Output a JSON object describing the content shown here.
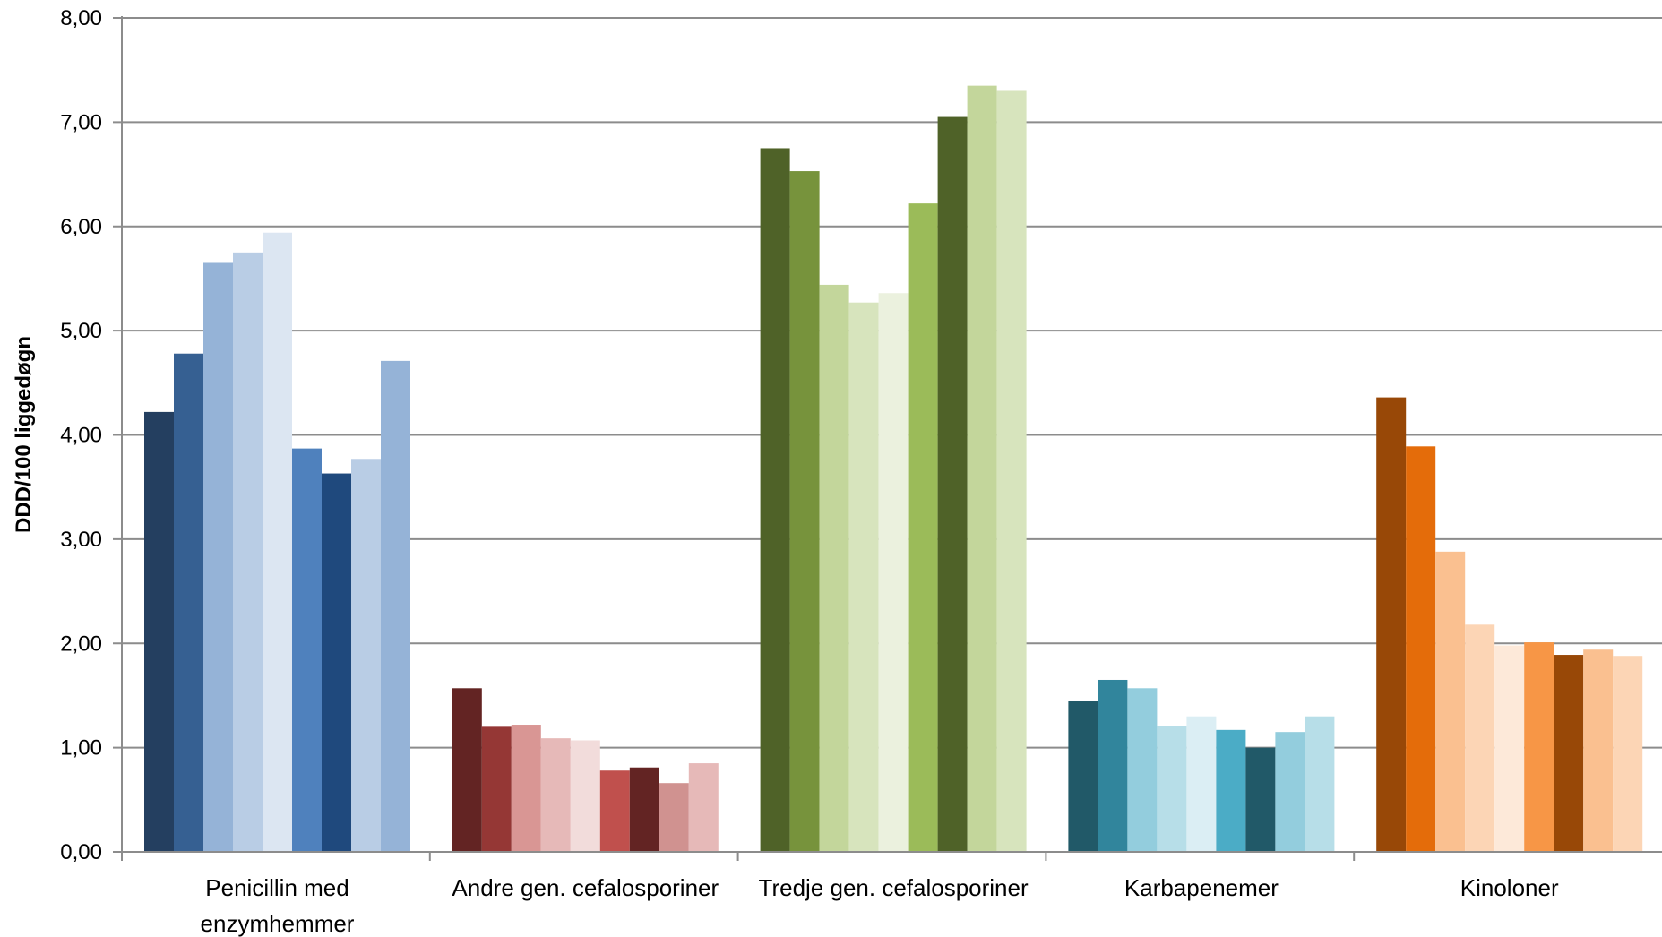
{
  "chart_data": {
    "type": "bar",
    "title": "",
    "xlabel": "",
    "ylabel": "DDD/100 liggedøgn",
    "ylim": [
      0,
      8
    ],
    "y_ticks": [
      "0,00",
      "1,00",
      "2,00",
      "3,00",
      "4,00",
      "5,00",
      "6,00",
      "7,00",
      "8,00"
    ],
    "grid": true,
    "legend": "none",
    "categories": [
      {
        "label_lines": [
          "Penicillin med",
          "enzymhemmer"
        ],
        "values": [
          4.22,
          4.78,
          5.65,
          5.75,
          5.94,
          3.87,
          3.63,
          3.77,
          4.71
        ],
        "colors": [
          "#243f60",
          "#366092",
          "#95b3d7",
          "#b9cde5",
          "#dce6f2",
          "#4f81bd",
          "#1f497d",
          "#b9cde5",
          "#95b3d7"
        ]
      },
      {
        "label_lines": [
          "Andre gen. cefalosporiner"
        ],
        "values": [
          1.57,
          1.2,
          1.22,
          1.09,
          1.07,
          0.78,
          0.81,
          0.66,
          0.85
        ],
        "colors": [
          "#632423",
          "#953735",
          "#d99694",
          "#e6b9b8",
          "#f2dcdb",
          "#c0504d",
          "#632423",
          "#d09290",
          "#e6b9b8"
        ]
      },
      {
        "label_lines": [
          "Tredje gen. cefalosporiner"
        ],
        "values": [
          6.75,
          6.53,
          5.44,
          5.27,
          5.36,
          6.22,
          7.05,
          7.35,
          7.3
        ],
        "colors": [
          "#4f6228",
          "#77933c",
          "#c3d69b",
          "#d7e4bd",
          "#ebf1de",
          "#9bbb59",
          "#4f6228",
          "#c3d69b",
          "#d7e4bd"
        ]
      },
      {
        "label_lines": [
          "Karbapenemer"
        ],
        "values": [
          1.45,
          1.65,
          1.57,
          1.21,
          1.3,
          1.17,
          1.0,
          1.15,
          1.3
        ],
        "colors": [
          "#215968",
          "#31859c",
          "#93cddd",
          "#b7dee8",
          "#dbeef4",
          "#4bacc6",
          "#215968",
          "#93cddd",
          "#b7dee8"
        ]
      },
      {
        "label_lines": [
          "Kinoloner"
        ],
        "values": [
          4.36,
          3.89,
          2.88,
          2.18,
          1.98,
          2.01,
          1.89,
          1.94,
          1.88
        ],
        "colors": [
          "#984807",
          "#e46c0a",
          "#fac090",
          "#fcd5b5",
          "#fde9d9",
          "#f79646",
          "#984807",
          "#fac090",
          "#fcd5b5"
        ]
      }
    ]
  }
}
